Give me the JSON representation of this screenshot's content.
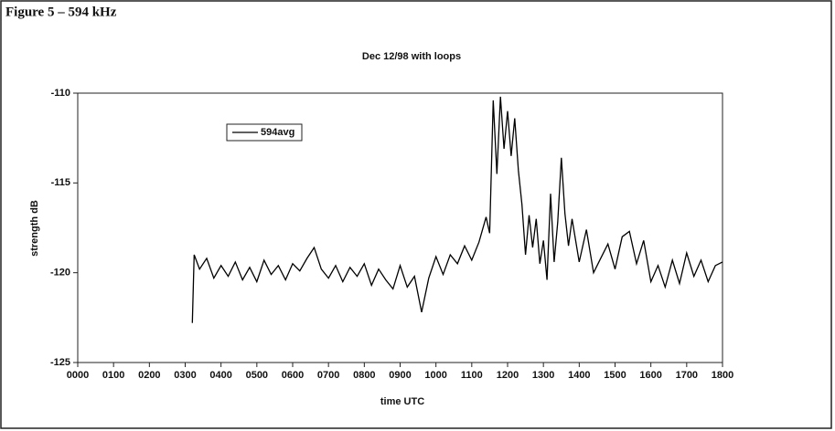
{
  "header": {
    "title": "Figure 5 – 594 kHz"
  },
  "chart_data": {
    "type": "line",
    "title": "Dec 12/98 with loops",
    "x_label": "time UTC",
    "y_label": "strength dB",
    "x": [
      3.2,
      3.25,
      3.4,
      3.6,
      3.8,
      4.0,
      4.2,
      4.4,
      4.6,
      4.8,
      5.0,
      5.2,
      5.4,
      5.6,
      5.8,
      6.0,
      6.2,
      6.4,
      6.6,
      6.8,
      7.0,
      7.2,
      7.4,
      7.6,
      7.8,
      8.0,
      8.2,
      8.4,
      8.6,
      8.8,
      9.0,
      9.2,
      9.4,
      9.6,
      9.8,
      10.0,
      10.2,
      10.4,
      10.6,
      10.8,
      11.0,
      11.2,
      11.4,
      11.5,
      11.6,
      11.7,
      11.8,
      11.9,
      12.0,
      12.1,
      12.2,
      12.3,
      12.4,
      12.5,
      12.6,
      12.7,
      12.8,
      12.9,
      13.0,
      13.1,
      13.2,
      13.3,
      13.4,
      13.5,
      13.6,
      13.7,
      13.8,
      14.0,
      14.2,
      14.4,
      14.6,
      14.8,
      15.0,
      15.2,
      15.4,
      15.6,
      15.8,
      16.0,
      16.2,
      16.4,
      16.6,
      16.8,
      17.0,
      17.2,
      17.4,
      17.6,
      17.8,
      18.0
    ],
    "series": [
      {
        "name": "594avg",
        "color": "#000000",
        "values": [
          -122.8,
          -119.0,
          -119.8,
          -119.2,
          -120.3,
          -119.6,
          -120.2,
          -119.4,
          -120.4,
          -119.7,
          -120.5,
          -119.3,
          -120.1,
          -119.6,
          -120.4,
          -119.5,
          -119.9,
          -119.2,
          -118.6,
          -119.8,
          -120.3,
          -119.6,
          -120.5,
          -119.7,
          -120.2,
          -119.5,
          -120.7,
          -119.8,
          -120.4,
          -120.9,
          -119.6,
          -120.8,
          -120.2,
          -122.2,
          -120.3,
          -119.1,
          -120.1,
          -119.0,
          -119.5,
          -118.5,
          -119.3,
          -118.3,
          -116.9,
          -117.8,
          -110.4,
          -114.5,
          -110.2,
          -113.1,
          -111.0,
          -113.5,
          -111.4,
          -114.3,
          -116.2,
          -119.0,
          -116.8,
          -118.6,
          -117.0,
          -119.5,
          -118.2,
          -120.4,
          -115.6,
          -119.4,
          -117.2,
          -113.6,
          -116.7,
          -118.5,
          -117.0,
          -119.4,
          -117.6,
          -120.0,
          -119.2,
          -118.4,
          -119.8,
          -118.0,
          -117.7,
          -119.5,
          -118.2,
          -120.5,
          -119.6,
          -120.8,
          -119.3,
          -120.6,
          -118.9,
          -120.2,
          -119.3,
          -120.5,
          -119.6,
          -119.4
        ]
      }
    ],
    "xlim": [
      0,
      18
    ],
    "ylim": [
      -125,
      -110
    ],
    "xticks": [
      {
        "value": 0,
        "label": "0000"
      },
      {
        "value": 1,
        "label": "0100"
      },
      {
        "value": 2,
        "label": "0200"
      },
      {
        "value": 3,
        "label": "0300"
      },
      {
        "value": 4,
        "label": "0400"
      },
      {
        "value": 5,
        "label": "0500"
      },
      {
        "value": 6,
        "label": "0600"
      },
      {
        "value": 7,
        "label": "0700"
      },
      {
        "value": 8,
        "label": "0800"
      },
      {
        "value": 9,
        "label": "0900"
      },
      {
        "value": 10,
        "label": "1000"
      },
      {
        "value": 11,
        "label": "1100"
      },
      {
        "value": 12,
        "label": "1200"
      },
      {
        "value": 13,
        "label": "1300"
      },
      {
        "value": 14,
        "label": "1400"
      },
      {
        "value": 15,
        "label": "1500"
      },
      {
        "value": 16,
        "label": "1600"
      },
      {
        "value": 17,
        "label": "1700"
      },
      {
        "value": 18,
        "label": "1800"
      }
    ],
    "yticks": [
      -125,
      -120,
      -115,
      -110
    ],
    "grid": false
  }
}
